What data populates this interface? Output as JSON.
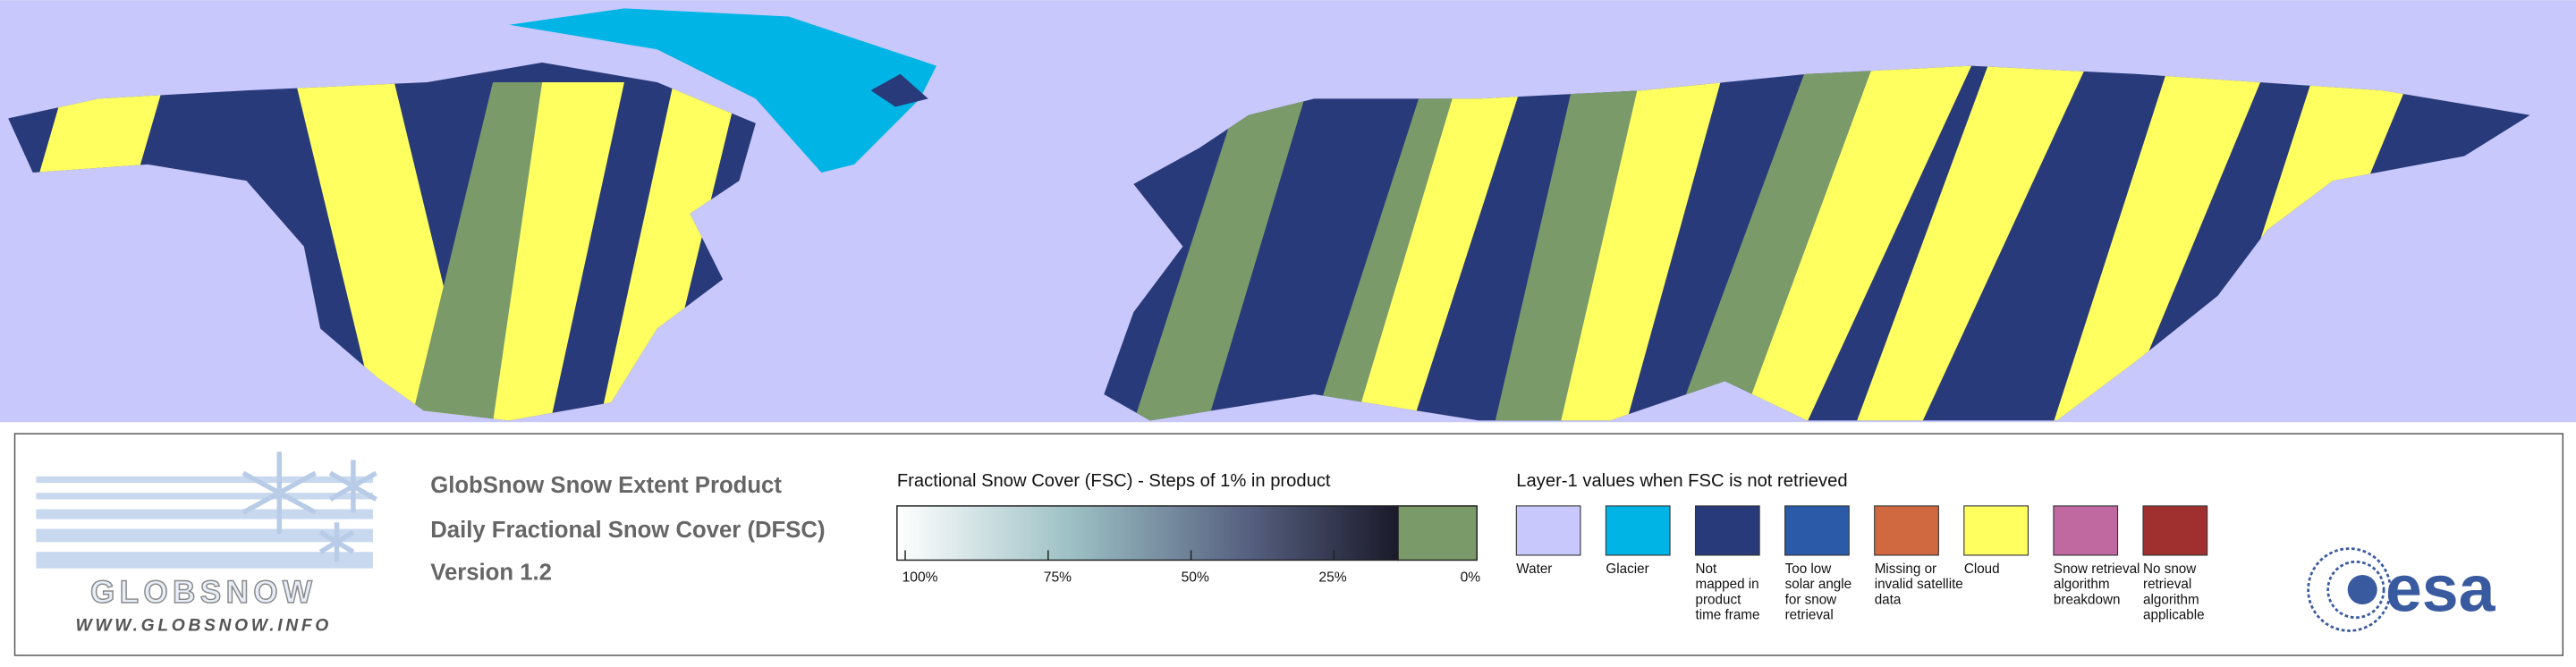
{
  "logo": {
    "name": "GLOBSNOW",
    "url": "WWW.GLOBSNOW.INFO"
  },
  "product": {
    "title": "GlobSnow Snow Extent Product",
    "subtitle": "Daily Fractional Snow Cover (DFSC)",
    "version": "Version 1.2"
  },
  "fsc_scale": {
    "title": "Fractional Snow Cover (FSC) - Steps of 1% in product",
    "ticks": [
      "100%",
      "75%",
      "50%",
      "25%",
      "0%"
    ]
  },
  "layer1": {
    "title": "Layer-1 values when FSC is not retrieved",
    "classes": [
      {
        "lines": [
          "Water"
        ],
        "color": "#c8c8fc"
      },
      {
        "lines": [
          "Glacier"
        ],
        "color": "#00b4e6"
      },
      {
        "lines": [
          "Not",
          "mapped in",
          "product",
          "time frame"
        ],
        "color": "#283a7a"
      },
      {
        "lines": [
          "Too low",
          "solar angle",
          "for snow",
          "retrieval"
        ],
        "color": "#2a5aa8"
      },
      {
        "lines": [
          "Missing or",
          "invalid satellite",
          "data"
        ],
        "color": "#d06840"
      },
      {
        "lines": [
          "Cloud"
        ],
        "color": "#ffff60"
      },
      {
        "lines": [
          "Snow retrieval",
          "algorithm",
          "breakdown"
        ],
        "color": "#c068a0"
      },
      {
        "lines": [
          "No snow",
          "retrieval",
          "algorithm",
          "applicable"
        ],
        "color": "#a03030"
      }
    ]
  },
  "esa": "esa"
}
